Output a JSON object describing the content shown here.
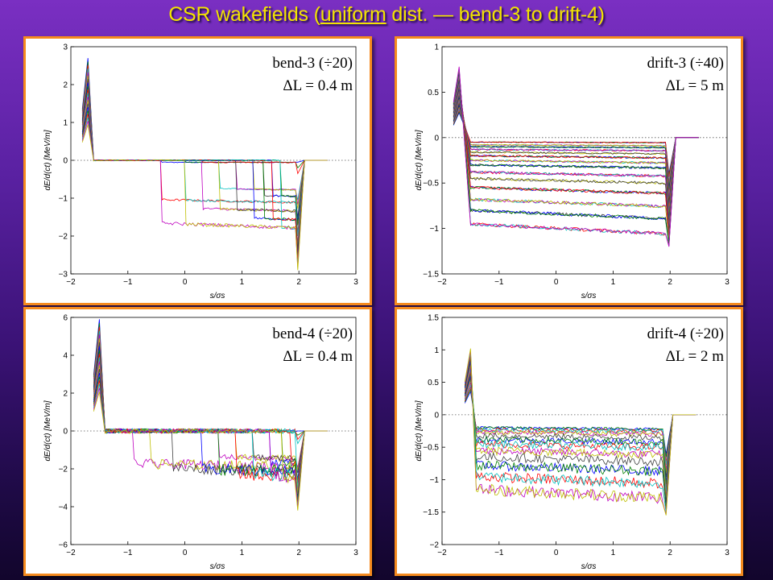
{
  "page": {
    "title_prefix": "CSR wakefields (",
    "title_underlined": "uniform",
    "title_suffix": " dist. — bend-3 to drift-4)"
  },
  "colors": {
    "background_top": "#7a2fc2",
    "background_bottom": "#12052c",
    "title": "#f2e400",
    "panel_border": "#f58a1e",
    "series_cycle": [
      "#0000ff",
      "#008000",
      "#ff0000",
      "#00bfbf",
      "#bf00bf",
      "#bfbf00",
      "#404040"
    ]
  },
  "chart_data": [
    {
      "type": "line",
      "panel_label": "bend-3 (÷20)",
      "delta_label": "ΔL = 0.4 m",
      "xlabel": "s/σs",
      "ylabel": "dE/d(ct) [MeV/m]",
      "xlim": [
        -2,
        3
      ],
      "ylim": [
        -3,
        3
      ],
      "xticks": [
        "−2",
        "−1",
        "0",
        "1",
        "2",
        "3"
      ],
      "yticks": [
        "3",
        "2",
        "1",
        "0",
        "−1",
        "−2",
        "−3"
      ],
      "zero_line": "dotted",
      "grid": false,
      "series_summary": {
        "count_approx": 20,
        "peak_near_x": -1.7,
        "peak_max_y": 2.7,
        "plateau_start_x": -1.6,
        "plateau_levels_y": [
          -0.05,
          -0.7,
          -0.85,
          -1.0,
          -1.2,
          -1.4,
          -1.6
        ],
        "transition_x": [
          -0.4,
          0.0,
          0.3,
          0.6,
          0.9,
          1.2,
          1.4,
          1.55,
          1.7
        ],
        "end_dip_x": 1.8,
        "end_dip_min_y": -2.9,
        "end_x": 2.1
      }
    },
    {
      "type": "line",
      "panel_label": "drift-3 (÷40)",
      "delta_label": "ΔL = 5 m",
      "xlabel": "s/σs",
      "ylabel": "dE/d(ct) [MeV/m]",
      "xlim": [
        -2,
        3
      ],
      "ylim": [
        -1.5,
        1
      ],
      "xticks": [
        "−2",
        "−1",
        "0",
        "1",
        "2",
        "3"
      ],
      "yticks": [
        "1",
        "0.5",
        "0",
        "−0.5",
        "−1",
        "−1.5"
      ],
      "zero_line": "dotted",
      "grid": false,
      "series_summary": {
        "count_approx": 40,
        "peak_near_x": -1.7,
        "peak_max_y": 0.78,
        "plateau_start_x": -1.5,
        "plateau_levels_y": [
          -0.05,
          -0.08,
          -0.1,
          -0.13,
          -0.16,
          -0.2,
          -0.25,
          -0.3,
          -0.38,
          -0.45,
          -0.55,
          -0.68,
          -0.8,
          -0.95
        ],
        "end_x": 2.1,
        "end_dip_min_y": -1.2
      }
    },
    {
      "type": "line",
      "panel_label": "bend-4 (÷20)",
      "delta_label": "ΔL = 0.4 m",
      "xlabel": "s/σs",
      "ylabel": "dE/d(ct) [MeV/m]",
      "xlim": [
        -2,
        3
      ],
      "ylim": [
        -6,
        6
      ],
      "xticks": [
        "−2",
        "−1",
        "0",
        "1",
        "2",
        "3"
      ],
      "yticks": [
        "6",
        "4",
        "2",
        "0",
        "−2",
        "−4",
        "−6"
      ],
      "zero_line": "dotted",
      "grid": false,
      "series_summary": {
        "count_approx": 20,
        "peak_near_x": -1.5,
        "peak_max_y": 5.9,
        "plateau_start_x": -1.4,
        "plateau_levels_y": [
          0.0,
          -1.3,
          -1.5,
          -1.7,
          -1.9,
          -2.1
        ],
        "transition_x": [
          -0.9,
          -0.6,
          -0.2,
          0.3,
          0.6,
          0.9,
          1.2,
          1.5,
          1.7,
          1.85,
          1.95
        ],
        "end_dip_x": 2.0,
        "end_dip_min_y": -4.2,
        "end_x": 2.1
      }
    },
    {
      "type": "line",
      "panel_label": "drift-4 (÷20)",
      "delta_label": "ΔL = 2 m",
      "xlabel": "s/σs",
      "ylabel": "dE/d(ct) [MeV/m]",
      "xlim": [
        -2,
        3
      ],
      "ylim": [
        -2,
        1.5
      ],
      "xticks": [
        "−2",
        "−1",
        "0",
        "1",
        "2",
        "3"
      ],
      "yticks": [
        "1.5",
        "1",
        "0.5",
        "0",
        "−0.5",
        "−1",
        "−1.5",
        "−2"
      ],
      "zero_line": "dotted",
      "grid": false,
      "series_summary": {
        "count_approx": 20,
        "peak_near_x": -1.5,
        "peak_max_y": 1.02,
        "plateau_start_x": -1.4,
        "plateau_levels_y": [
          -0.2,
          -0.23,
          -0.27,
          -0.32,
          -0.38,
          -0.45,
          -0.55,
          -0.65,
          -0.78,
          -0.95,
          -1.15
        ],
        "end_x": 2.05,
        "end_dip_min_y": -1.55
      }
    }
  ]
}
